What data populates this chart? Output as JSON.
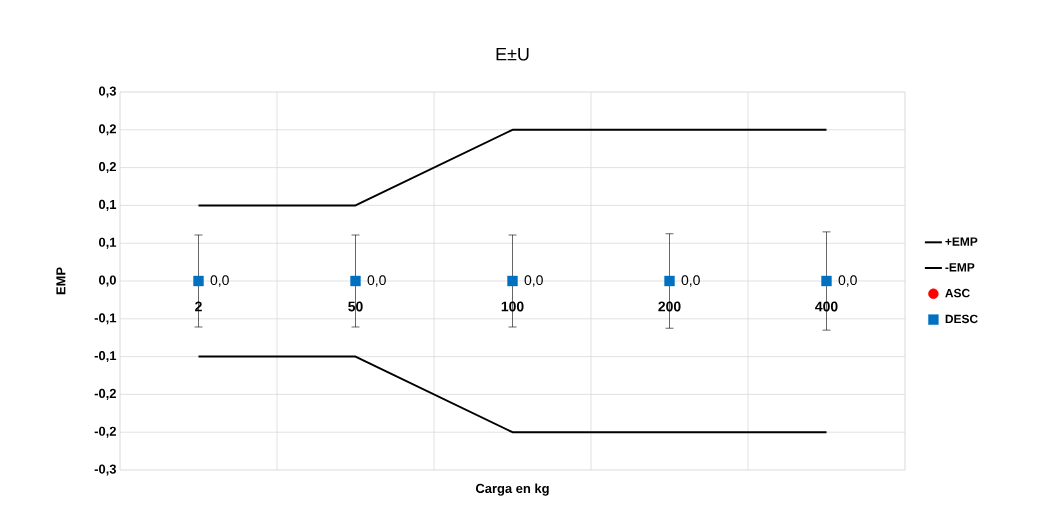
{
  "chart_data": {
    "type": "line",
    "title": "E±U",
    "xlabel": "Carga en kg",
    "ylabel": "EMP",
    "categories": [
      "2",
      "50",
      "100",
      "200",
      "400"
    ],
    "series": [
      {
        "name": "+EMP",
        "color": "#000000",
        "marker": "none",
        "values": [
          0.12,
          0.12,
          0.24,
          0.24,
          0.24
        ]
      },
      {
        "name": "-EMP",
        "color": "#000000",
        "marker": "none",
        "values": [
          -0.12,
          -0.12,
          -0.24,
          -0.24,
          -0.24
        ]
      },
      {
        "name": "ASC",
        "type": "scatter",
        "color": "#ff0000",
        "marker": "circle",
        "values": [
          null,
          null,
          null,
          null,
          null
        ]
      },
      {
        "name": "DESC",
        "type": "scatter",
        "color": "#0070c0",
        "marker": "square",
        "values": [
          0,
          0,
          0,
          0,
          0
        ],
        "errors": [
          0.073,
          0.073,
          0.073,
          0.075,
          0.078
        ],
        "value_labels": [
          "0,0",
          "0,0",
          "0,0",
          "0,0",
          "0,0"
        ]
      }
    ],
    "ylim": [
      -0.3,
      0.3
    ],
    "yticks": [
      {
        "value": -0.3,
        "label": "-0,3"
      },
      {
        "value": -0.24,
        "label": "-0,2"
      },
      {
        "value": -0.18,
        "label": "-0,2"
      },
      {
        "value": -0.12,
        "label": "-0,1"
      },
      {
        "value": -0.06,
        "label": "-0,1"
      },
      {
        "value": 0,
        "label": "0,0"
      },
      {
        "value": 0.06,
        "label": "0,1"
      },
      {
        "value": 0.12,
        "label": "0,1"
      },
      {
        "value": 0.18,
        "label": "0,2"
      },
      {
        "value": 0.24,
        "label": "0,2"
      },
      {
        "value": 0.3,
        "label": "0,3"
      }
    ],
    "grid": true,
    "legend": "right",
    "line_style": "solid"
  }
}
